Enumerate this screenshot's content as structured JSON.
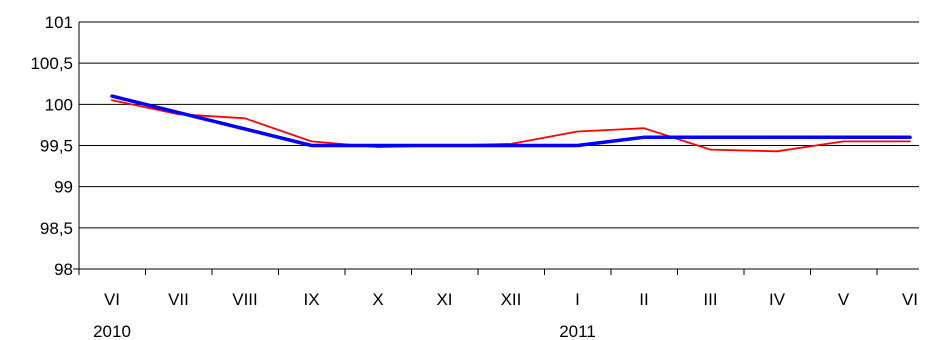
{
  "chart_data": {
    "type": "line",
    "categories": [
      "VI",
      "VII",
      "VIII",
      "IX",
      "X",
      "XI",
      "XII",
      "I",
      "II",
      "III",
      "IV",
      "V",
      "VI"
    ],
    "year_labels": [
      {
        "label": "2010",
        "category_index": 0
      },
      {
        "label": "2011",
        "category_index": 7
      }
    ],
    "ylim": [
      98,
      101
    ],
    "yticks": [
      "98",
      "98,5",
      "99",
      "99,5",
      "100",
      "100,5",
      "101"
    ],
    "ytick_values": [
      98,
      98.5,
      99,
      99.5,
      100,
      100.5,
      101
    ],
    "grid": true,
    "series": [
      {
        "color": "#0000FF",
        "values": [
          100.1,
          99.9,
          99.7,
          99.5,
          99.5,
          99.5,
          99.5,
          99.5,
          99.6,
          99.6,
          99.6,
          99.6,
          99.6
        ]
      },
      {
        "color": "#FF0000",
        "values": [
          100.05,
          99.88,
          99.83,
          99.55,
          99.48,
          99.5,
          99.52,
          99.67,
          99.71,
          99.45,
          99.43,
          99.55,
          99.55
        ]
      }
    ]
  }
}
